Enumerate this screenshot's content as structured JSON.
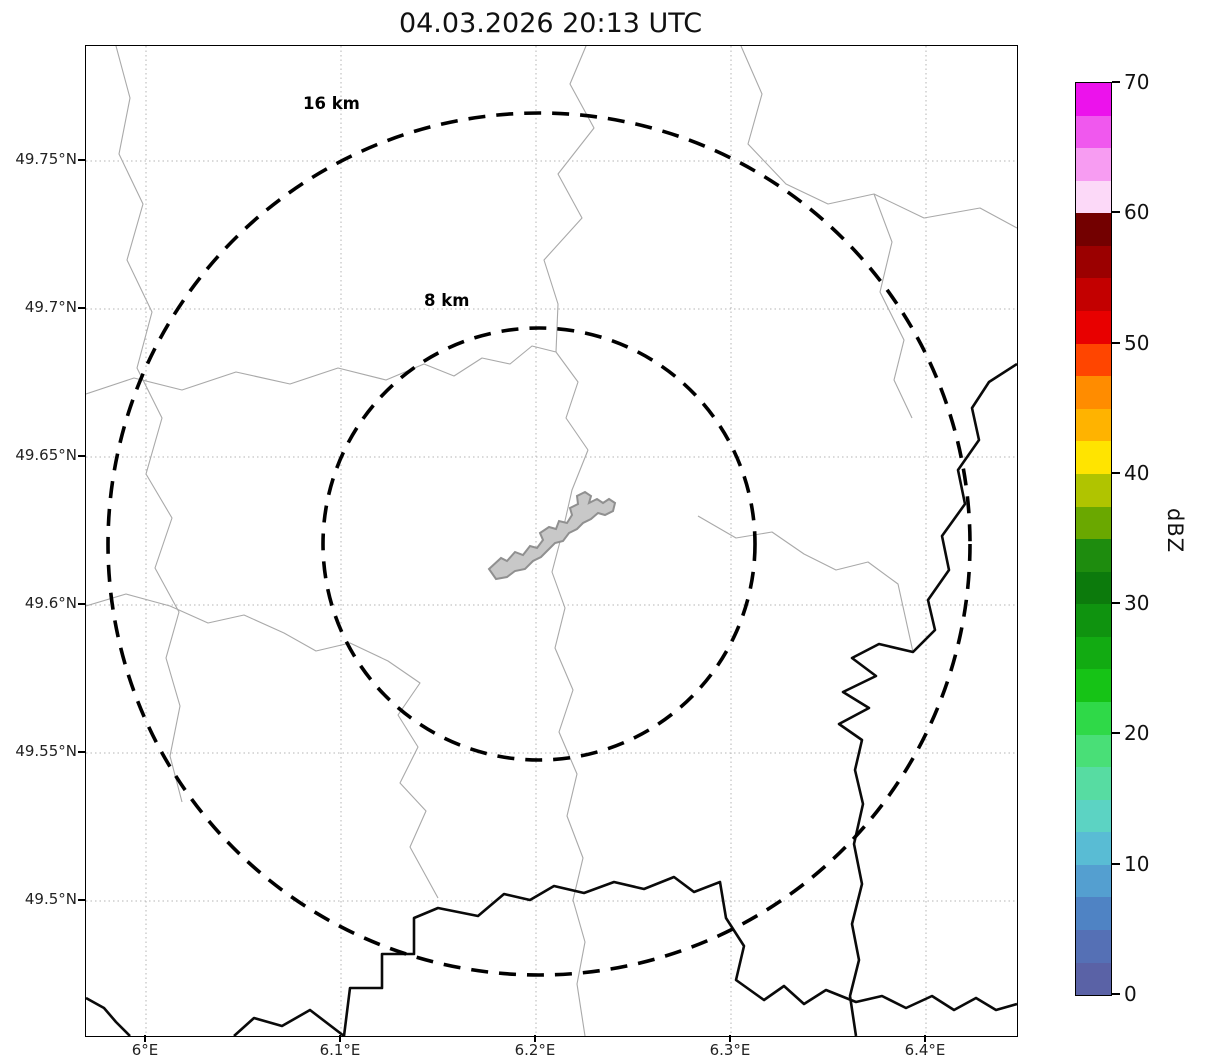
{
  "title": "04.03.2026 20:13 UTC",
  "map": {
    "ring_labels": [
      "16 km",
      "8 km"
    ]
  },
  "axes": {
    "lat_ticks": [
      "49.75°N",
      "49.7°N",
      "49.65°N",
      "49.6°N",
      "49.55°N",
      "49.5°N"
    ],
    "lon_ticks": [
      "6°E",
      "6.1°E",
      "6.2°E",
      "6.3°E",
      "6.4°E"
    ]
  },
  "colorbar": {
    "label": "dBZ",
    "ticks": [
      "70",
      "60",
      "50",
      "40",
      "30",
      "20",
      "10",
      "0"
    ],
    "colors_top_to_bottom": [
      "#ec12ec",
      "#f058ee",
      "#f79cf2",
      "#fcd9f8",
      "#730000",
      "#9b0000",
      "#c30000",
      "#e80000",
      "#ff4500",
      "#ff8c00",
      "#ffb300",
      "#ffe400",
      "#b0c400",
      "#6aa800",
      "#1e8c0e",
      "#0c7a0c",
      "#0f930f",
      "#12ab12",
      "#16c316",
      "#2fd948",
      "#49df77",
      "#57dca2",
      "#5cd3c3",
      "#59bcd4",
      "#549fd0",
      "#4f83c4",
      "#5570b5",
      "#5a62a6"
    ]
  },
  "chart_data": {
    "type": "heatmap",
    "title": "04.03.2026 20:13 UTC",
    "x_axis": {
      "ticks": [
        "6°E",
        "6.1°E",
        "6.2°E",
        "6.3°E",
        "6.4°E"
      ],
      "range_deg_e": [
        5.97,
        6.45
      ]
    },
    "y_axis": {
      "ticks": [
        "49.5°N",
        "49.55°N",
        "49.6°N",
        "49.65°N",
        "49.7°N",
        "49.75°N"
      ],
      "range_deg_n": [
        49.45,
        49.79
      ]
    },
    "colorbar": {
      "label": "dBZ",
      "min": 0,
      "max": 70,
      "tick_step": 10
    },
    "range_rings_km": [
      8,
      16
    ],
    "ring_center_lonlat": [
      6.2,
      49.62
    ],
    "radar_echoes": "none visible above colorbar minimum",
    "grid": true,
    "legend": "colorbar right"
  }
}
